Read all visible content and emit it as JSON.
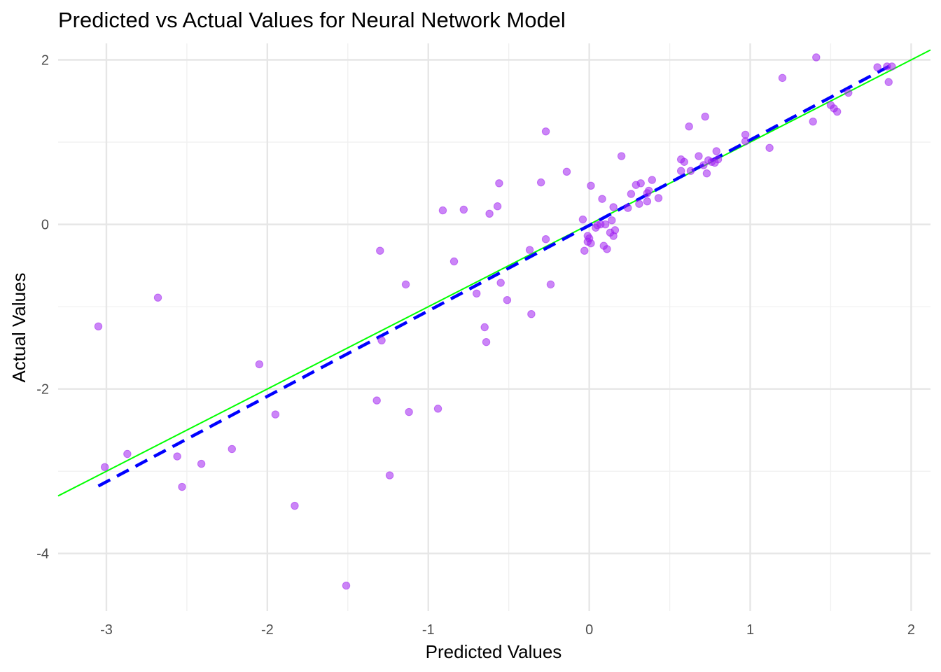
{
  "chart_data": {
    "type": "scatter",
    "title": "Predicted vs Actual Values for Neural Network Model",
    "xlabel": "Predicted Values",
    "ylabel": "Actual Values",
    "xlim": [
      -3.3,
      2.12
    ],
    "ylim": [
      -4.7,
      2.2
    ],
    "x_ticks": [
      -3,
      -2,
      -1,
      0,
      1,
      2
    ],
    "y_ticks": [
      -4,
      -2,
      0,
      2
    ],
    "x_tick_labels": [
      "-3",
      "-2",
      "-1",
      "0",
      "1",
      "2"
    ],
    "y_tick_labels": [
      "-4",
      "-2",
      "0",
      "2"
    ],
    "grid": true,
    "colors": {
      "points": "#a020f0",
      "regression_line": "#0000ff",
      "identity_line": "#00ff00",
      "grid_major": "#e6e6e6",
      "grid_minor": "#f0f0f0"
    },
    "lines": [
      {
        "style": "dashed",
        "color": "#0000ff",
        "x": [
          -3.05,
          1.87
        ],
        "y": [
          -3.18,
          1.93
        ]
      },
      {
        "style": "solid",
        "color": "#00ff00",
        "x": [
          -3.3,
          2.12
        ],
        "y": [
          -3.3,
          2.12
        ]
      }
    ],
    "points": [
      {
        "x": -3.05,
        "y": -1.24
      },
      {
        "x": -3.01,
        "y": -2.95
      },
      {
        "x": -2.87,
        "y": -2.79
      },
      {
        "x": -2.68,
        "y": -0.89
      },
      {
        "x": -2.56,
        "y": -2.82
      },
      {
        "x": -2.53,
        "y": -3.19
      },
      {
        "x": -2.41,
        "y": -2.91
      },
      {
        "x": -2.22,
        "y": -2.73
      },
      {
        "x": -2.05,
        "y": -1.7
      },
      {
        "x": -1.95,
        "y": -2.31
      },
      {
        "x": -1.83,
        "y": -3.42
      },
      {
        "x": -1.51,
        "y": -4.39
      },
      {
        "x": -1.32,
        "y": -2.14
      },
      {
        "x": -1.3,
        "y": -0.32
      },
      {
        "x": -1.29,
        "y": -1.41
      },
      {
        "x": -1.24,
        "y": -3.05
      },
      {
        "x": -1.14,
        "y": -0.73
      },
      {
        "x": -1.12,
        "y": -2.28
      },
      {
        "x": -0.94,
        "y": -2.24
      },
      {
        "x": -0.91,
        "y": 0.17
      },
      {
        "x": -0.84,
        "y": -0.45
      },
      {
        "x": -0.78,
        "y": 0.18
      },
      {
        "x": -0.7,
        "y": -0.84
      },
      {
        "x": -0.65,
        "y": -1.25
      },
      {
        "x": -0.64,
        "y": -1.43
      },
      {
        "x": -0.62,
        "y": 0.13
      },
      {
        "x": -0.57,
        "y": 0.22
      },
      {
        "x": -0.56,
        "y": 0.5
      },
      {
        "x": -0.55,
        "y": -0.71
      },
      {
        "x": -0.51,
        "y": -0.92
      },
      {
        "x": -0.37,
        "y": -0.31
      },
      {
        "x": -0.36,
        "y": -1.09
      },
      {
        "x": -0.3,
        "y": 0.51
      },
      {
        "x": -0.27,
        "y": 1.13
      },
      {
        "x": -0.27,
        "y": -0.18
      },
      {
        "x": -0.24,
        "y": -0.73
      },
      {
        "x": -0.14,
        "y": 0.64
      },
      {
        "x": -0.04,
        "y": 0.06
      },
      {
        "x": -0.03,
        "y": -0.32
      },
      {
        "x": -0.01,
        "y": -0.21
      },
      {
        "x": -0.01,
        "y": -0.14
      },
      {
        "x": 0.0,
        "y": -0.17
      },
      {
        "x": 0.01,
        "y": -0.23
      },
      {
        "x": 0.01,
        "y": 0.47
      },
      {
        "x": 0.04,
        "y": -0.04
      },
      {
        "x": 0.05,
        "y": -0.01
      },
      {
        "x": 0.07,
        "y": 0.0
      },
      {
        "x": 0.08,
        "y": 0.31
      },
      {
        "x": 0.09,
        "y": -0.26
      },
      {
        "x": 0.1,
        "y": 0.0
      },
      {
        "x": 0.11,
        "y": -0.3
      },
      {
        "x": 0.13,
        "y": -0.1
      },
      {
        "x": 0.14,
        "y": 0.05
      },
      {
        "x": 0.15,
        "y": -0.14
      },
      {
        "x": 0.15,
        "y": 0.21
      },
      {
        "x": 0.16,
        "y": -0.07
      },
      {
        "x": 0.2,
        "y": 0.83
      },
      {
        "x": 0.24,
        "y": 0.2
      },
      {
        "x": 0.26,
        "y": 0.37
      },
      {
        "x": 0.29,
        "y": 0.48
      },
      {
        "x": 0.31,
        "y": 0.25
      },
      {
        "x": 0.32,
        "y": 0.5
      },
      {
        "x": 0.36,
        "y": 0.38
      },
      {
        "x": 0.36,
        "y": 0.28
      },
      {
        "x": 0.37,
        "y": 0.41
      },
      {
        "x": 0.39,
        "y": 0.54
      },
      {
        "x": 0.43,
        "y": 0.32
      },
      {
        "x": 0.57,
        "y": 0.79
      },
      {
        "x": 0.57,
        "y": 0.65
      },
      {
        "x": 0.59,
        "y": 0.76
      },
      {
        "x": 0.62,
        "y": 1.19
      },
      {
        "x": 0.63,
        "y": 0.65
      },
      {
        "x": 0.68,
        "y": 0.83
      },
      {
        "x": 0.71,
        "y": 0.72
      },
      {
        "x": 0.72,
        "y": 1.31
      },
      {
        "x": 0.73,
        "y": 0.62
      },
      {
        "x": 0.74,
        "y": 0.78
      },
      {
        "x": 0.76,
        "y": 0.76
      },
      {
        "x": 0.78,
        "y": 0.75
      },
      {
        "x": 0.79,
        "y": 0.89
      },
      {
        "x": 0.8,
        "y": 0.79
      },
      {
        "x": 0.97,
        "y": 1.09
      },
      {
        "x": 0.97,
        "y": 1.01
      },
      {
        "x": 1.12,
        "y": 0.93
      },
      {
        "x": 1.2,
        "y": 1.78
      },
      {
        "x": 1.39,
        "y": 1.25
      },
      {
        "x": 1.41,
        "y": 2.03
      },
      {
        "x": 1.5,
        "y": 1.45
      },
      {
        "x": 1.52,
        "y": 1.41
      },
      {
        "x": 1.54,
        "y": 1.37
      },
      {
        "x": 1.61,
        "y": 1.6
      },
      {
        "x": 1.79,
        "y": 1.91
      },
      {
        "x": 1.85,
        "y": 1.92
      },
      {
        "x": 1.86,
        "y": 1.73
      },
      {
        "x": 1.88,
        "y": 1.92
      }
    ]
  }
}
